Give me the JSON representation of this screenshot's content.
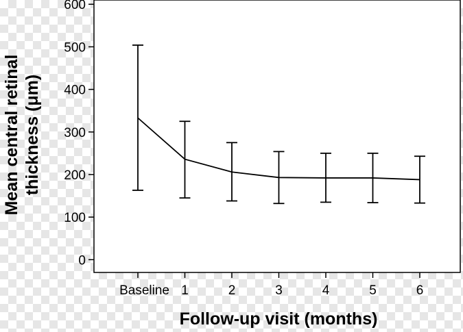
{
  "chart_data": {
    "type": "line",
    "title": "",
    "xlabel": "Follow-up visit (months)",
    "ylabel_lines": [
      "Mean central retinal",
      "thickness (μm)"
    ],
    "categories": [
      "Baseline",
      "1",
      "2",
      "3",
      "4",
      "5",
      "6"
    ],
    "values": [
      333,
      236,
      206,
      193,
      192,
      192,
      188
    ],
    "error_low": [
      163,
      145,
      138,
      132,
      135,
      134,
      133
    ],
    "error_high": [
      504,
      325,
      275,
      254,
      250,
      250,
      243
    ],
    "ylim": [
      -30,
      610
    ],
    "yticks": [
      0,
      100,
      200,
      300,
      400,
      500,
      600
    ],
    "grid": false,
    "legend": "none",
    "colors": {
      "line": "#000000",
      "plot_background": "#ffffff"
    }
  }
}
